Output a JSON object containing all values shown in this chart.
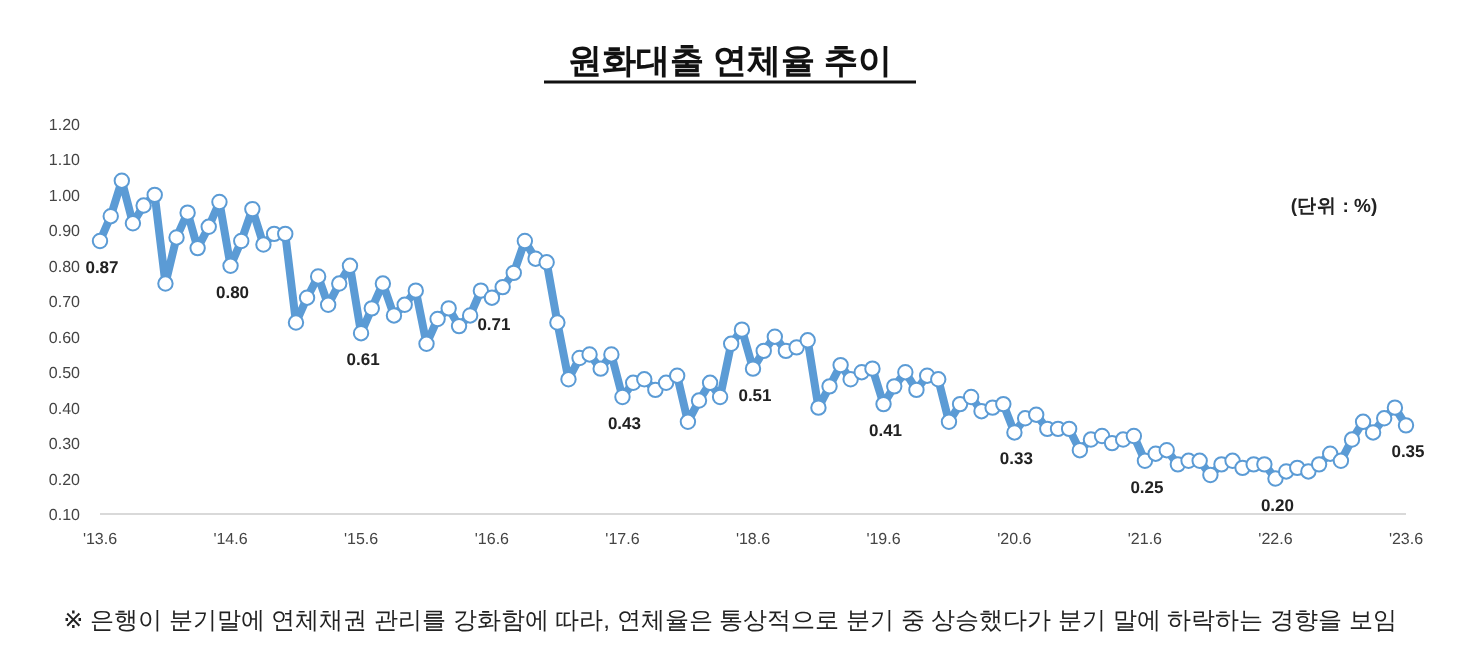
{
  "chart_data": {
    "type": "line",
    "title": "원화대출 연체율 추이",
    "annotations": [
      "(단위 : %)",
      "※ 은행이 분기말에 연체채권 관리를 강화함에 따라, 연체율은 통상적으로 분기 중 상승했다가 분기 말에 하락하는 경향을 보임"
    ],
    "x": [
      "2013-06",
      "2013-07",
      "2013-08",
      "2013-09",
      "2013-10",
      "2013-11",
      "2013-12",
      "2014-01",
      "2014-02",
      "2014-03",
      "2014-04",
      "2014-05",
      "2014-06",
      "2014-07",
      "2014-08",
      "2014-09",
      "2014-10",
      "2014-11",
      "2014-12",
      "2015-01",
      "2015-02",
      "2015-03",
      "2015-04",
      "2015-05",
      "2015-06",
      "2015-07",
      "2015-08",
      "2015-09",
      "2015-10",
      "2015-11",
      "2015-12",
      "2016-01",
      "2016-02",
      "2016-03",
      "2016-04",
      "2016-05",
      "2016-06",
      "2016-07",
      "2016-08",
      "2016-09",
      "2016-10",
      "2016-11",
      "2016-12",
      "2017-01",
      "2017-02",
      "2017-03",
      "2017-04",
      "2017-05",
      "2017-06",
      "2017-07",
      "2017-08",
      "2017-09",
      "2017-10",
      "2017-11",
      "2017-12",
      "2018-01",
      "2018-02",
      "2018-03",
      "2018-04",
      "2018-05",
      "2018-06",
      "2018-07",
      "2018-08",
      "2018-09",
      "2018-10",
      "2018-11",
      "2018-12",
      "2019-01",
      "2019-02",
      "2019-03",
      "2019-04",
      "2019-05",
      "2019-06",
      "2019-07",
      "2019-08",
      "2019-09",
      "2019-10",
      "2019-11",
      "2019-12",
      "2020-01",
      "2020-02",
      "2020-03",
      "2020-04",
      "2020-05",
      "2020-06",
      "2020-07",
      "2020-08",
      "2020-09",
      "2020-10",
      "2020-11",
      "2020-12",
      "2021-01",
      "2021-02",
      "2021-03",
      "2021-04",
      "2021-05",
      "2021-06",
      "2021-07",
      "2021-08",
      "2021-09",
      "2021-10",
      "2021-11",
      "2021-12",
      "2022-01",
      "2022-02",
      "2022-03",
      "2022-04",
      "2022-05",
      "2022-06",
      "2022-07",
      "2022-08",
      "2022-09",
      "2022-10",
      "2022-11",
      "2022-12",
      "2023-01",
      "2023-02",
      "2023-03",
      "2023-04",
      "2023-05",
      "2023-06"
    ],
    "series": [
      {
        "color": "#5b9bd5",
        "values": [
          0.87,
          0.94,
          1.04,
          0.92,
          0.97,
          1.0,
          0.75,
          0.88,
          0.95,
          0.85,
          0.91,
          0.98,
          0.8,
          0.87,
          0.96,
          0.86,
          0.89,
          0.89,
          0.64,
          0.71,
          0.77,
          0.69,
          0.75,
          0.8,
          0.61,
          0.68,
          0.75,
          0.66,
          0.69,
          0.73,
          0.58,
          0.65,
          0.68,
          0.63,
          0.66,
          0.73,
          0.71,
          0.74,
          0.78,
          0.87,
          0.82,
          0.81,
          0.64,
          0.48,
          0.54,
          0.55,
          0.51,
          0.55,
          0.43,
          0.47,
          0.48,
          0.45,
          0.47,
          0.49,
          0.36,
          0.42,
          0.47,
          0.43,
          0.58,
          0.62,
          0.51,
          0.56,
          0.6,
          0.56,
          0.57,
          0.59,
          0.4,
          0.46,
          0.52,
          0.48,
          0.5,
          0.51,
          0.41,
          0.46,
          0.5,
          0.45,
          0.49,
          0.48,
          0.36,
          0.41,
          0.43,
          0.39,
          0.4,
          0.41,
          0.33,
          0.37,
          0.38,
          0.34,
          0.34,
          0.34,
          0.28,
          0.31,
          0.32,
          0.3,
          0.31,
          0.32,
          0.25,
          0.27,
          0.28,
          0.24,
          0.25,
          0.25,
          0.21,
          0.24,
          0.25,
          0.23,
          0.24,
          0.24,
          0.2,
          0.22,
          0.23,
          0.22,
          0.24,
          0.27,
          0.25,
          0.31,
          0.36,
          0.33,
          0.37,
          0.4,
          0.35
        ],
        "value_labels": [
          "0.87",
          null,
          null,
          null,
          null,
          null,
          null,
          null,
          null,
          null,
          null,
          null,
          "0.80",
          null,
          null,
          null,
          null,
          null,
          null,
          null,
          null,
          null,
          null,
          null,
          "0.61",
          null,
          null,
          null,
          null,
          null,
          null,
          null,
          null,
          null,
          null,
          null,
          "0.71",
          null,
          null,
          null,
          null,
          null,
          null,
          null,
          null,
          null,
          null,
          null,
          "0.43",
          null,
          null,
          null,
          null,
          null,
          null,
          null,
          null,
          null,
          null,
          null,
          "0.51",
          null,
          null,
          null,
          null,
          null,
          null,
          null,
          null,
          null,
          null,
          null,
          "0.41",
          null,
          null,
          null,
          null,
          null,
          null,
          null,
          null,
          null,
          null,
          null,
          "0.33",
          null,
          null,
          null,
          null,
          null,
          null,
          null,
          null,
          null,
          null,
          null,
          "0.25",
          null,
          null,
          null,
          null,
          null,
          null,
          null,
          null,
          null,
          null,
          null,
          "0.20",
          null,
          null,
          null,
          null,
          null,
          null,
          null,
          null,
          null,
          null,
          null,
          "0.35"
        ]
      }
    ],
    "xlim": [
      "2013-06",
      "2023-06"
    ],
    "xticks": [
      {
        "value": "2013-06",
        "label": "'13.6"
      },
      {
        "value": "2014-06",
        "label": "'14.6"
      },
      {
        "value": "2015-06",
        "label": "'15.6"
      },
      {
        "value": "2016-06",
        "label": "'16.6"
      },
      {
        "value": "2017-06",
        "label": "'17.6"
      },
      {
        "value": "2018-06",
        "label": "'18.6"
      },
      {
        "value": "2019-06",
        "label": "'19.6"
      },
      {
        "value": "2020-06",
        "label": "'20.6"
      },
      {
        "value": "2021-06",
        "label": "'21.6"
      },
      {
        "value": "2022-06",
        "label": "'22.6"
      },
      {
        "value": "2023-06",
        "label": "'23.6"
      }
    ],
    "ylim": [
      0.1,
      1.2
    ],
    "yticks": [
      {
        "value": 0.1,
        "label": "0.10"
      },
      {
        "value": 0.2,
        "label": "0.20"
      },
      {
        "value": 0.3,
        "label": "0.30"
      },
      {
        "value": 0.4,
        "label": "0.40"
      },
      {
        "value": 0.5,
        "label": "0.50"
      },
      {
        "value": 0.6,
        "label": "0.60"
      },
      {
        "value": 0.7,
        "label": "0.70"
      },
      {
        "value": 0.8,
        "label": "0.80"
      },
      {
        "value": 0.9,
        "label": "0.90"
      },
      {
        "value": 1.0,
        "label": "1.00"
      },
      {
        "value": 1.1,
        "label": "1.10"
      },
      {
        "value": 1.2,
        "label": "1.20"
      }
    ],
    "grid": false,
    "marker": "circle",
    "line_style": "solid"
  }
}
